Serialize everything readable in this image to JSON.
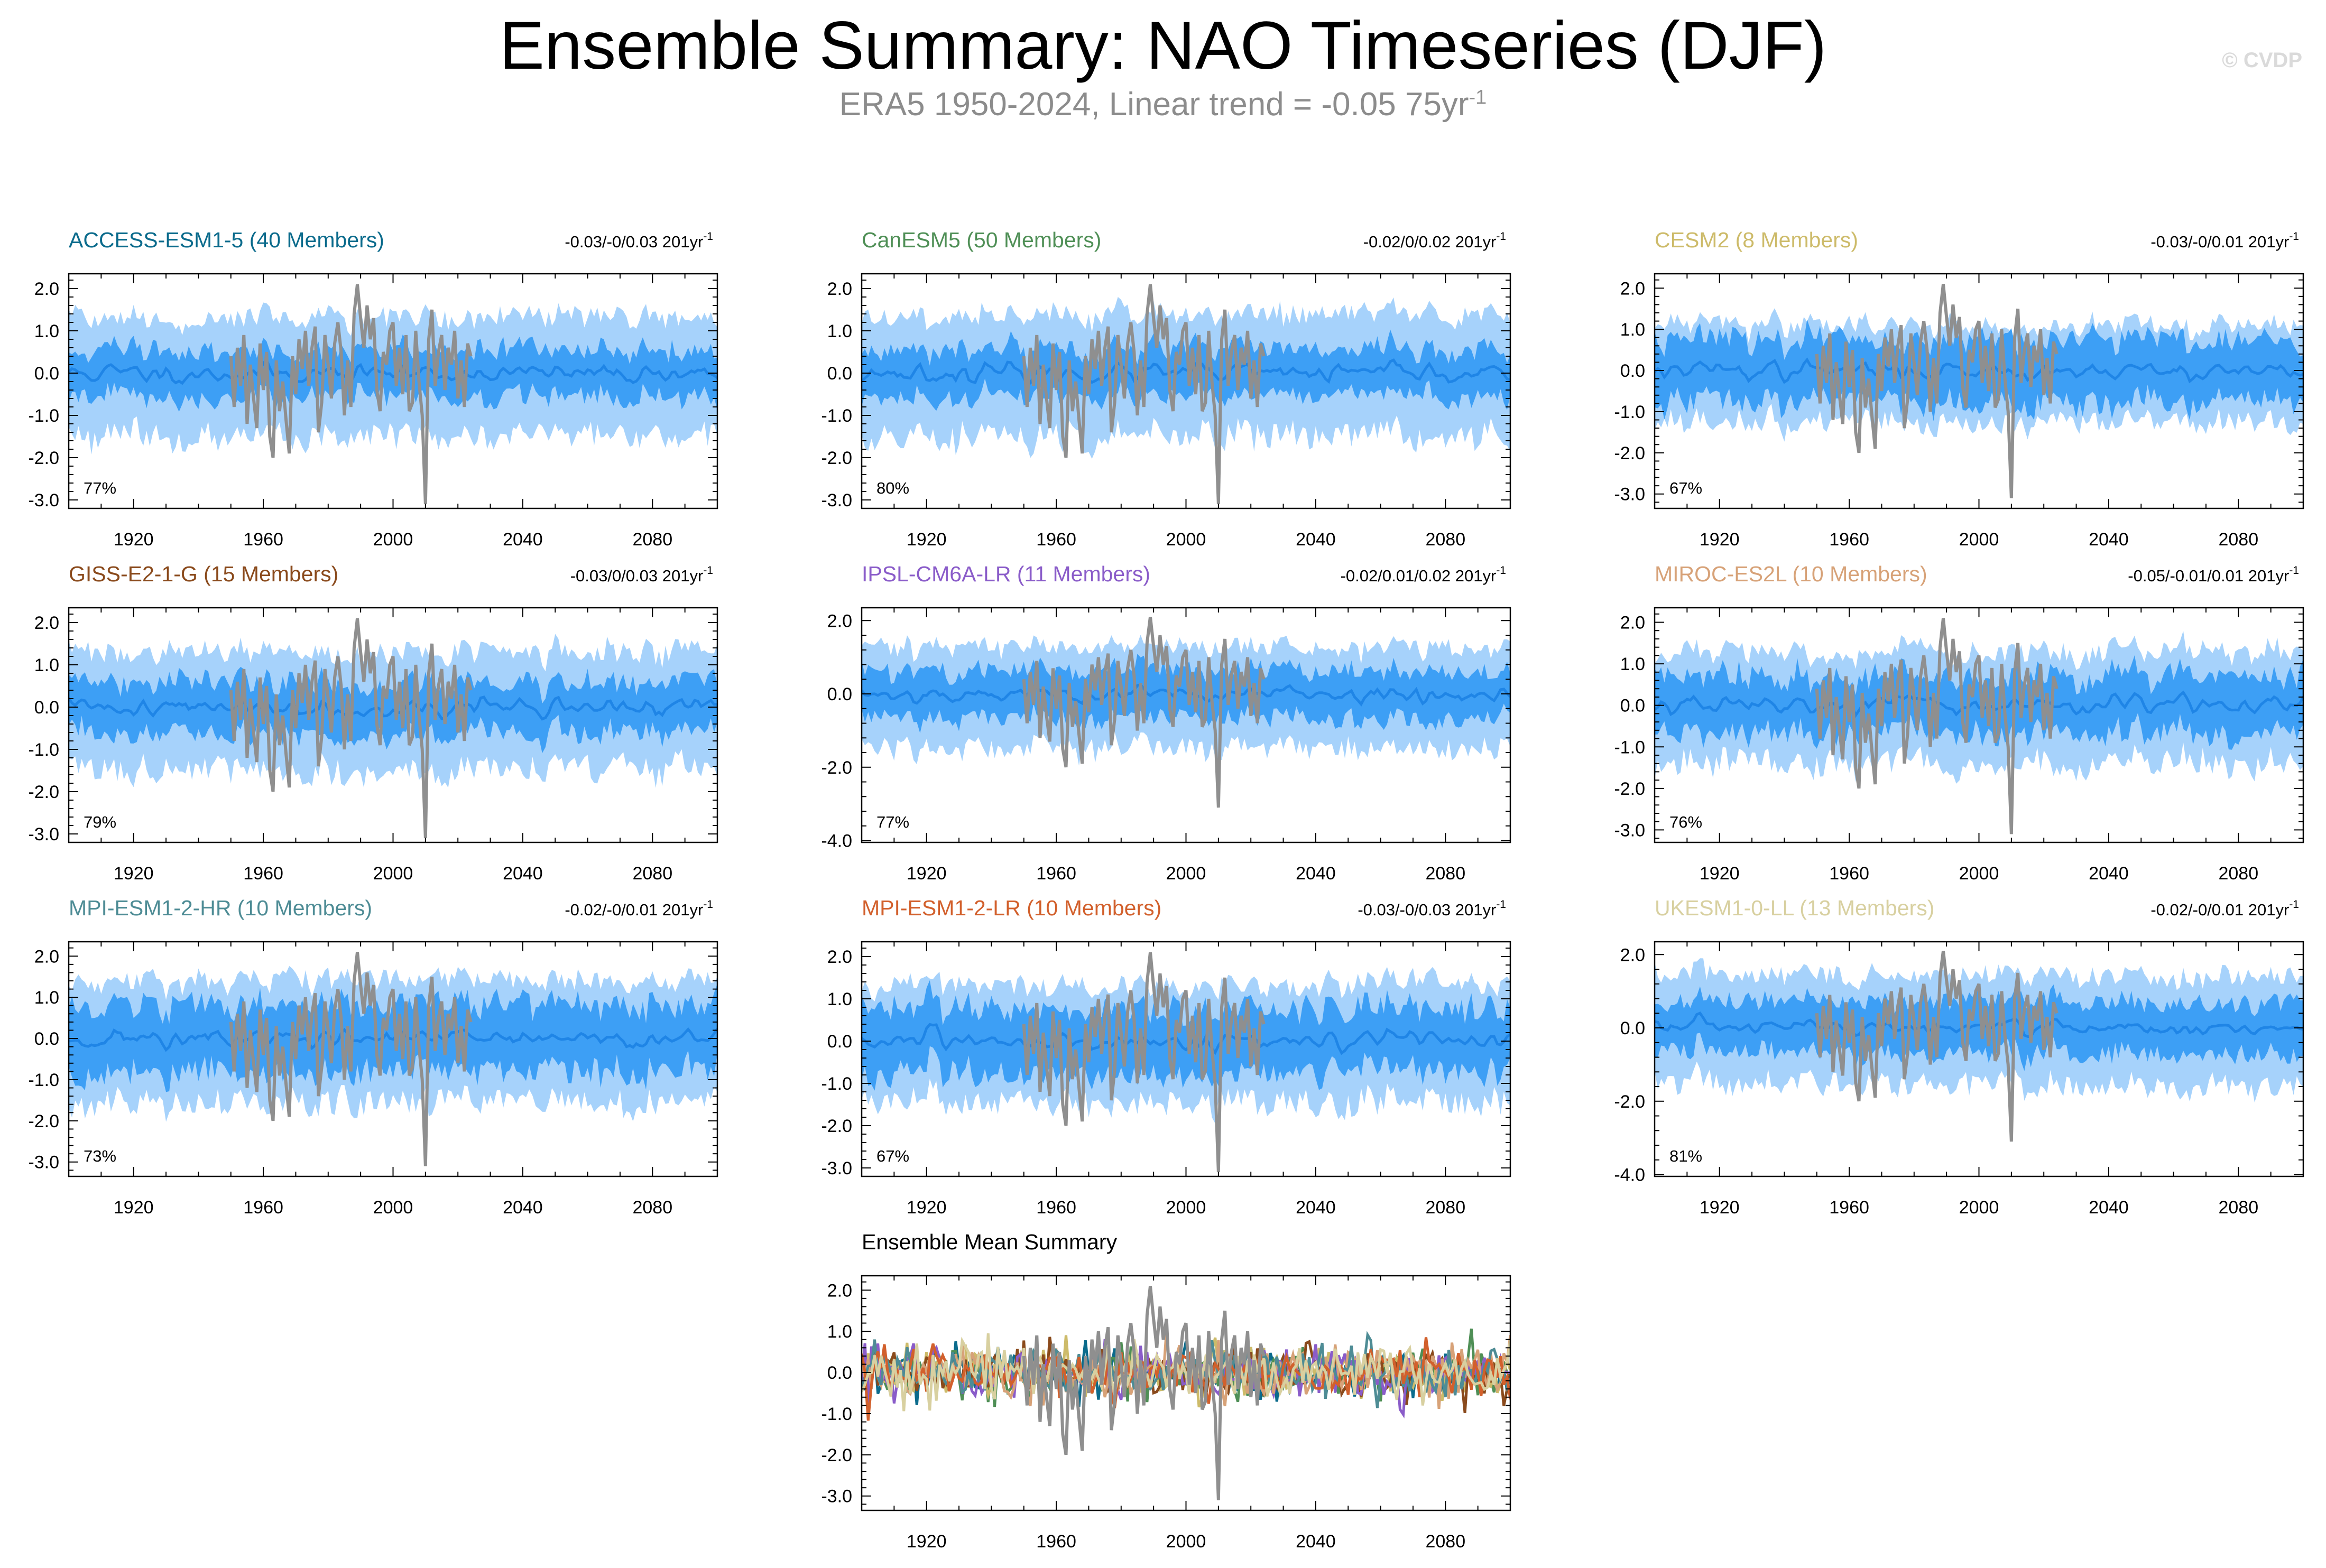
{
  "title": "Ensemble Summary: NAO Timeseries (DJF)",
  "subtitle": {
    "text": "ERA5 1950-2024, Linear trend = -0.05 75yr",
    "sup": "-1"
  },
  "watermark": "© CVDP",
  "colors": {
    "band_outer": "#a6d2fb",
    "band_inner": "#3d9ff5",
    "ensemble_mean_line": "#1f85e6",
    "observation_line": "#8f8f8f",
    "axis": "#000000"
  },
  "chart_data": [
    {
      "type": "line",
      "model": "ACCESS-ESM1-5",
      "title": "ACCESS-ESM1-5 (40 Members)",
      "title_color": "#0b6b8c",
      "trend": "-0.03/-0/0.03 201yr",
      "trend_sup": "-1",
      "percent": "77%",
      "xlim": [
        1900,
        2100
      ],
      "ylim": [
        -3.2,
        2.35
      ],
      "yticks": [
        -3.0,
        -2.0,
        -1.0,
        0.0,
        1.0,
        2.0
      ],
      "ytick_labels": [
        "-3.0",
        "-2.0",
        "-1.0",
        "0.0",
        "1.0",
        "2.0"
      ],
      "xticks": [
        1920,
        1960,
        2000,
        2040,
        2080
      ],
      "xtick_labels": [
        "1920",
        "1960",
        "2000",
        "2040",
        "2080"
      ],
      "spread_outer": 1.35,
      "spread_inner": 0.55,
      "seed": 11
    },
    {
      "type": "line",
      "model": "CanESM5",
      "title": "CanESM5 (50 Members)",
      "title_color": "#4f8f56",
      "trend": "-0.02/0/0.02 201yr",
      "trend_sup": "-1",
      "percent": "80%",
      "xlim": [
        1900,
        2100
      ],
      "ylim": [
        -3.2,
        2.35
      ],
      "yticks": [
        -3.0,
        -2.0,
        -1.0,
        0.0,
        1.0,
        2.0
      ],
      "ytick_labels": [
        "-3.0",
        "-2.0",
        "-1.0",
        "0.0",
        "1.0",
        "2.0"
      ],
      "xticks": [
        1920,
        1960,
        2000,
        2040,
        2080
      ],
      "xtick_labels": [
        "1920",
        "1960",
        "2000",
        "2040",
        "2080"
      ],
      "spread_outer": 1.4,
      "spread_inner": 0.55,
      "seed": 23
    },
    {
      "type": "line",
      "model": "CESM2",
      "title": "CESM2 (8 Members)",
      "title_color": "#cdbb6a",
      "trend": "-0.03/-0/0.01 201yr",
      "trend_sup": "-1",
      "percent": "67%",
      "xlim": [
        1900,
        2100
      ],
      "ylim": [
        -3.35,
        2.35
      ],
      "yticks": [
        -3.0,
        -2.0,
        -1.0,
        0.0,
        1.0,
        2.0
      ],
      "ytick_labels": [
        "-3.0",
        "-2.0",
        "-1.0",
        "0.0",
        "1.0",
        "2.0"
      ],
      "xticks": [
        1920,
        1960,
        2000,
        2040,
        2080
      ],
      "xtick_labels": [
        "1920",
        "1960",
        "2000",
        "2040",
        "2080"
      ],
      "spread_outer": 1.15,
      "spread_inner": 0.75,
      "seed": 37
    },
    {
      "type": "line",
      "model": "GISS-E2-1-G",
      "title": "GISS-E2-1-G (15 Members)",
      "title_color": "#8a4a1c",
      "trend": "-0.03/0/0.03 201yr",
      "trend_sup": "-1",
      "percent": "79%",
      "xlim": [
        1900,
        2100
      ],
      "ylim": [
        -3.2,
        2.35
      ],
      "yticks": [
        -3.0,
        -2.0,
        -1.0,
        0.0,
        1.0,
        2.0
      ],
      "ytick_labels": [
        "-3.0",
        "-2.0",
        "-1.0",
        "0.0",
        "1.0",
        "2.0"
      ],
      "xticks": [
        1920,
        1960,
        2000,
        2040,
        2080
      ],
      "xtick_labels": [
        "1920",
        "1960",
        "2000",
        "2040",
        "2080"
      ],
      "spread_outer": 1.35,
      "spread_inner": 0.6,
      "seed": 41
    },
    {
      "type": "line",
      "model": "IPSL-CM6A-LR",
      "title": "IPSL-CM6A-LR (11 Members)",
      "title_color": "#8a5cc9",
      "trend": "-0.02/0.01/0.02 201yr",
      "trend_sup": "-1",
      "percent": "77%",
      "xlim": [
        1900,
        2100
      ],
      "ylim": [
        -4.05,
        2.35
      ],
      "yticks": [
        -4.0,
        -2.0,
        0.0,
        2.0
      ],
      "ytick_labels": [
        "-4.0",
        "-2.0",
        "0.0",
        "2.0"
      ],
      "xticks": [
        1920,
        1960,
        2000,
        2040,
        2080
      ],
      "xtick_labels": [
        "1920",
        "1960",
        "2000",
        "2040",
        "2080"
      ],
      "spread_outer": 1.35,
      "spread_inner": 0.65,
      "seed": 53
    },
    {
      "type": "line",
      "model": "MIROC-ES2L",
      "title": "MIROC-ES2L (10 Members)",
      "title_color": "#d7a278",
      "trend": "-0.05/-0.01/0.01 201yr",
      "trend_sup": "-1",
      "percent": "76%",
      "xlim": [
        1900,
        2100
      ],
      "ylim": [
        -3.3,
        2.35
      ],
      "yticks": [
        -3.0,
        -2.0,
        -1.0,
        0.0,
        1.0,
        2.0
      ],
      "ytick_labels": [
        "-3.0",
        "-2.0",
        "-1.0",
        "0.0",
        "1.0",
        "2.0"
      ],
      "xticks": [
        1920,
        1960,
        2000,
        2040,
        2080
      ],
      "xtick_labels": [
        "1920",
        "1960",
        "2000",
        "2040",
        "2080"
      ],
      "spread_outer": 1.3,
      "spread_inner": 0.7,
      "seed": 67
    },
    {
      "type": "line",
      "model": "MPI-ESM1-2-HR",
      "title": "MPI-ESM1-2-HR (10 Members)",
      "title_color": "#4e8c95",
      "trend": "-0.02/-0/0.01 201yr",
      "trend_sup": "-1",
      "percent": "73%",
      "xlim": [
        1900,
        2100
      ],
      "ylim": [
        -3.35,
        2.35
      ],
      "yticks": [
        -3.0,
        -2.0,
        -1.0,
        0.0,
        1.0,
        2.0
      ],
      "ytick_labels": [
        "-3.0",
        "-2.0",
        "-1.0",
        "0.0",
        "1.0",
        "2.0"
      ],
      "xticks": [
        1920,
        1960,
        2000,
        2040,
        2080
      ],
      "xtick_labels": [
        "1920",
        "1960",
        "2000",
        "2040",
        "2080"
      ],
      "spread_outer": 1.45,
      "spread_inner": 0.8,
      "seed": 71
    },
    {
      "type": "line",
      "model": "MPI-ESM1-2-LR",
      "title": "MPI-ESM1-2-LR (10 Members)",
      "title_color": "#d2602c",
      "trend": "-0.03/-0/0.03 201yr",
      "trend_sup": "-1",
      "percent": "67%",
      "xlim": [
        1900,
        2100
      ],
      "ylim": [
        -3.2,
        2.35
      ],
      "yticks": [
        -3.0,
        -2.0,
        -1.0,
        0.0,
        1.0,
        2.0
      ],
      "ytick_labels": [
        "-3.0",
        "-2.0",
        "-1.0",
        "0.0",
        "1.0",
        "2.0"
      ],
      "xticks": [
        1920,
        1960,
        2000,
        2040,
        2080
      ],
      "xtick_labels": [
        "1920",
        "1960",
        "2000",
        "2040",
        "2080"
      ],
      "spread_outer": 1.35,
      "spread_inner": 0.75,
      "seed": 83
    },
    {
      "type": "line",
      "model": "UKESM1-0-LL",
      "title": "UKESM1-0-LL (13 Members)",
      "title_color": "#d8d0a0",
      "trend": "-0.02/-0/0.01 201yr",
      "trend_sup": "-1",
      "percent": "81%",
      "xlim": [
        1900,
        2100
      ],
      "ylim": [
        -4.05,
        2.35
      ],
      "yticks": [
        -4.0,
        -2.0,
        0.0,
        2.0
      ],
      "ytick_labels": [
        "-4.0",
        "-2.0",
        "0.0",
        "2.0"
      ],
      "xticks": [
        1920,
        1960,
        2000,
        2040,
        2080
      ],
      "xtick_labels": [
        "1920",
        "1960",
        "2000",
        "2040",
        "2080"
      ],
      "spread_outer": 1.45,
      "spread_inner": 0.7,
      "seed": 97
    },
    {
      "type": "line",
      "model": "ensemble-mean-summary",
      "title": "Ensemble Mean Summary",
      "title_color": "#000000",
      "trend": "",
      "trend_sup": "",
      "percent": "",
      "xlim": [
        1900,
        2100
      ],
      "ylim": [
        -3.35,
        2.35
      ],
      "yticks": [
        -3.0,
        -2.0,
        -1.0,
        0.0,
        1.0,
        2.0
      ],
      "ytick_labels": [
        "-3.0",
        "-2.0",
        "-1.0",
        "0.0",
        "1.0",
        "2.0"
      ],
      "xticks": [
        1920,
        1960,
        2000,
        2040,
        2080
      ],
      "xtick_labels": [
        "1920",
        "1960",
        "2000",
        "2040",
        "2080"
      ],
      "series_colors": [
        "#0b6b8c",
        "#4f8f56",
        "#cdbb6a",
        "#8a4a1c",
        "#8a5cc9",
        "#d7a278",
        "#4e8c95",
        "#d2602c",
        "#d8d0a0"
      ],
      "seed": 131
    }
  ],
  "observations": {
    "name": "ERA5",
    "start_year": 1950,
    "end_year": 2024,
    "values": [
      0.4,
      -0.8,
      0.6,
      -0.3,
      0.9,
      -1.2,
      0.2,
      -0.6,
      -1.3,
      0.7,
      -0.4,
      0.5,
      -1.5,
      -2.0,
      0.3,
      -0.9,
      -0.2,
      -1.1,
      -1.9,
      0.4,
      -0.5,
      0.8,
      0.1,
      1.0,
      -0.3,
      0.6,
      1.1,
      -1.4,
      -0.7,
      0.9,
      0.2,
      -0.6,
      0.7,
      1.2,
      0.5,
      -1.0,
      0.3,
      -0.8,
      1.4,
      2.1,
      1.3,
      0.6,
      1.6,
      0.8,
      1.3,
      -0.4,
      -0.9,
      0.5,
      0.2,
      1.0,
      1.2,
      -0.3,
      0.6,
      -0.5,
      0.9,
      -0.9,
      -0.7,
      1.0,
      -0.2,
      -1.0,
      -3.1,
      0.8,
      1.5,
      -0.3,
      0.5,
      0.9,
      -0.4,
      0.6,
      0.2,
      1.0,
      -0.6,
      0.3,
      -0.8,
      0.7,
      0.4
    ]
  }
}
